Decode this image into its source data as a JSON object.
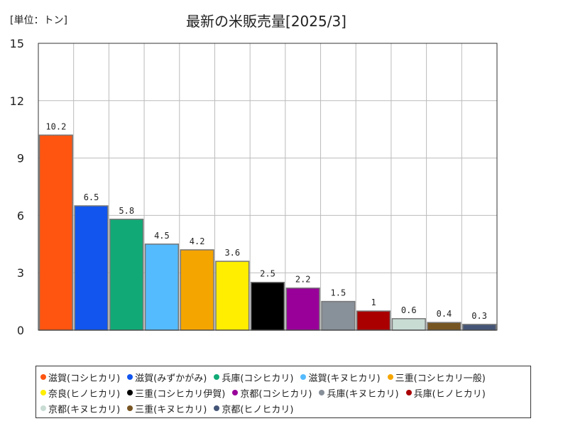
{
  "unit_label": "[単位：トン]",
  "chart_data": {
    "type": "bar",
    "title": "最新の米販売量[2025/3]",
    "categories": [
      "滋賀(コシヒカリ)",
      "滋賀(みずかがみ)",
      "兵庫(コシヒカリ)",
      "滋賀(キヌヒカリ)",
      "三重(コシヒカリ一般)",
      "奈良(ヒノヒカリ)",
      "三重(コシヒカリ伊賀)",
      "京都(コシヒカリ)",
      "兵庫(キヌヒカリ)",
      "兵庫(ヒノヒカリ)",
      "京都(キヌヒカリ)",
      "三重(キヌヒカリ)",
      "京都(ヒノヒカリ)"
    ],
    "values": [
      10.2,
      6.5,
      5.8,
      4.5,
      4.2,
      3.6,
      2.5,
      2.2,
      1.5,
      1,
      0.6,
      0.4,
      0.3
    ],
    "value_labels": [
      "10.2",
      "6.5",
      "5.8",
      "4.5",
      "4.2",
      "3.6",
      "2.5",
      "2.2",
      "1.5",
      "1",
      "0.6",
      "0.4",
      "0.3"
    ],
    "colors": [
      "#ff5511",
      "#1155ee",
      "#11aa77",
      "#55bbff",
      "#f5a500",
      "#ffee00",
      "#000000",
      "#990099",
      "#889099",
      "#aa0000",
      "#c8dcd4",
      "#775522",
      "#445577"
    ],
    "yticks": [
      "0",
      "3",
      "6",
      "9",
      "12",
      "15"
    ],
    "ylim": [
      0,
      15
    ],
    "grid": true,
    "legend_position": "bottom"
  }
}
